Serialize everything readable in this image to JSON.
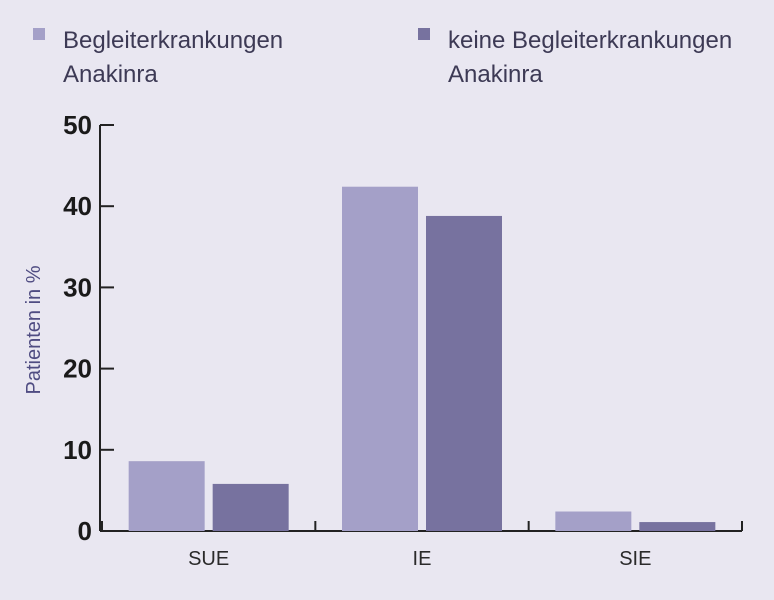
{
  "chart_data": {
    "type": "bar",
    "categories": [
      "SUE",
      "IE",
      "SIE"
    ],
    "series": [
      {
        "name": "Begleiterkrankungen Anakinra",
        "name_lines": [
          "Begleiterkrankungen",
          "Anakinra"
        ],
        "values": [
          8.6,
          42.4,
          2.4
        ],
        "color": "#a4a0c8"
      },
      {
        "name": "keine Begleiterkrankungen Anakinra",
        "name_lines": [
          "keine Begleiterkrankungen",
          "Anakinra"
        ],
        "values": [
          5.8,
          38.8,
          1.1
        ],
        "color": "#77729f"
      }
    ],
    "ylabel": "Patienten in %",
    "xlabel": "",
    "ylim": [
      0,
      50
    ],
    "yticks": [
      0,
      10,
      20,
      30,
      40,
      50
    ],
    "legend_position": "top",
    "grid": false
  }
}
